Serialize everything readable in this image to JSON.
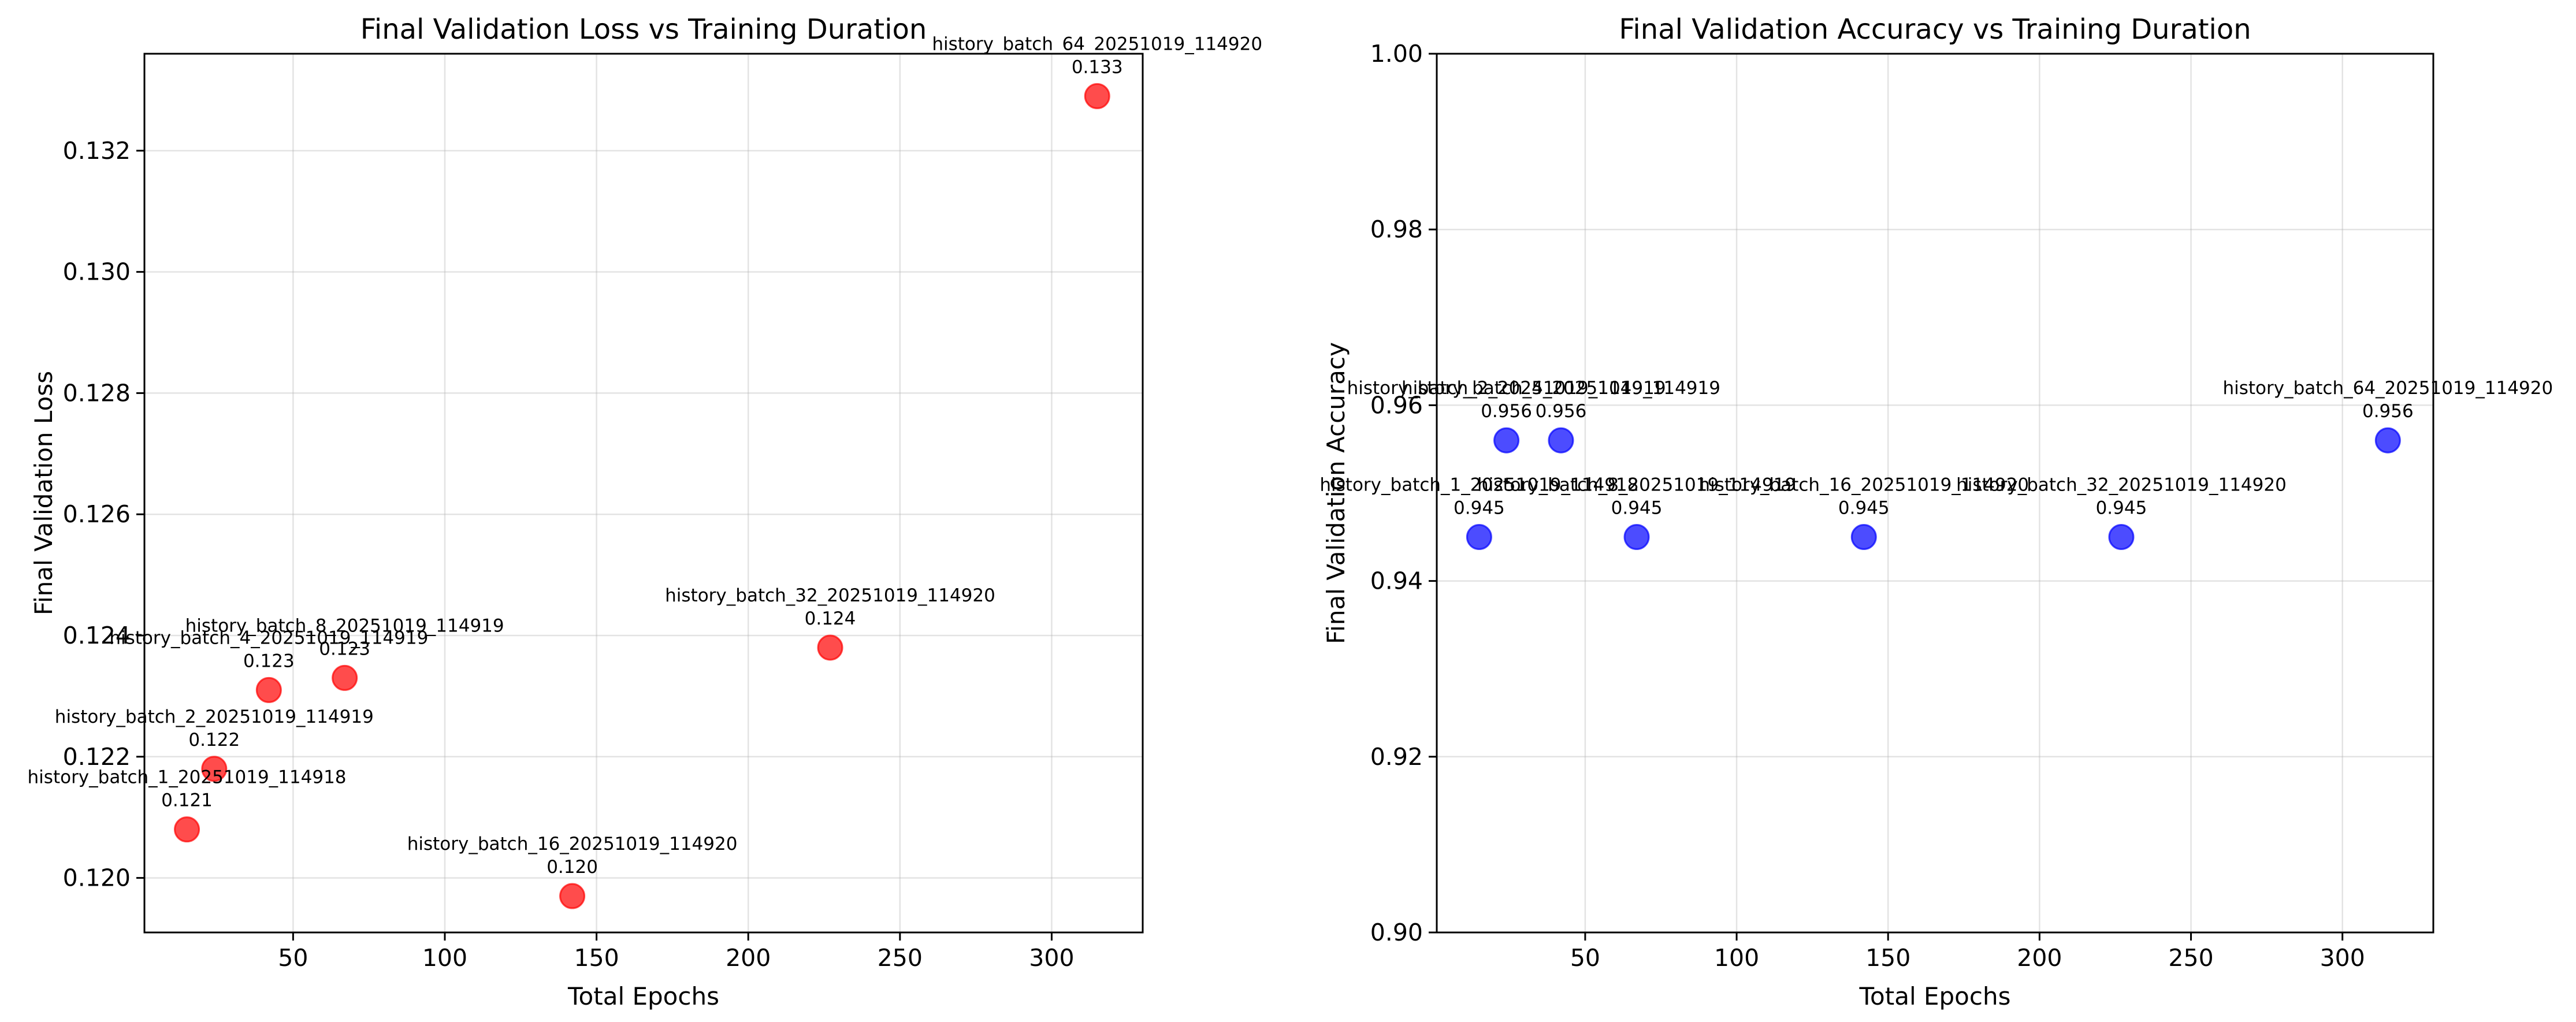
{
  "chart_data": [
    {
      "type": "scatter",
      "title": "Final Validation Loss vs Training Duration",
      "xlabel": "Total Epochs",
      "ylabel": "Final Validation Loss",
      "xlim": [
        1,
        330
      ],
      "ylim": [
        0.1191,
        0.1336
      ],
      "xticks": [
        50,
        100,
        150,
        200,
        250,
        300
      ],
      "yticks": [
        0.12,
        0.122,
        0.124,
        0.126,
        0.128,
        0.13,
        0.132
      ],
      "ytick_decimals": 3,
      "grid": true,
      "color": "#ff0000",
      "points": [
        {
          "name": "history_batch_1_20251019_114918",
          "x": 15,
          "y": 0.1208,
          "label": "0.121"
        },
        {
          "name": "history_batch_2_20251019_114919",
          "x": 24,
          "y": 0.1218,
          "label": "0.122"
        },
        {
          "name": "history_batch_4_20251019_114919",
          "x": 42,
          "y": 0.1231,
          "label": "0.123"
        },
        {
          "name": "history_batch_8_20251019_114919",
          "x": 67,
          "y": 0.1233,
          "label": "0.123"
        },
        {
          "name": "history_batch_16_20251019_114920",
          "x": 142,
          "y": 0.1197,
          "label": "0.120"
        },
        {
          "name": "history_batch_32_20251019_114920",
          "x": 227,
          "y": 0.1238,
          "label": "0.124"
        },
        {
          "name": "history_batch_64_20251019_114920",
          "x": 315,
          "y": 0.1329,
          "label": "0.133"
        }
      ]
    },
    {
      "type": "scatter",
      "title": "Final Validation Accuracy vs Training Duration",
      "xlabel": "Total Epochs",
      "ylabel": "Final Validation Accuracy",
      "xlim": [
        1,
        330
      ],
      "ylim": [
        0.9,
        1.0
      ],
      "xticks": [
        50,
        100,
        150,
        200,
        250,
        300
      ],
      "yticks": [
        0.9,
        0.92,
        0.94,
        0.96,
        0.98,
        1.0
      ],
      "ytick_decimals": 2,
      "grid": true,
      "color": "#0000ff",
      "points": [
        {
          "name": "history_batch_1_20251019_114918",
          "x": 15,
          "y": 0.945,
          "label": "0.945"
        },
        {
          "name": "history_batch_2_20251019_114919",
          "x": 24,
          "y": 0.956,
          "label": "0.956"
        },
        {
          "name": "history_batch_4_20251019_114919",
          "x": 42,
          "y": 0.956,
          "label": "0.956"
        },
        {
          "name": "history_batch_8_20251019_114919",
          "x": 67,
          "y": 0.945,
          "label": "0.945"
        },
        {
          "name": "history_batch_16_20251019_114920",
          "x": 142,
          "y": 0.945,
          "label": "0.945"
        },
        {
          "name": "history_batch_32_20251019_114920",
          "x": 227,
          "y": 0.945,
          "label": "0.945"
        },
        {
          "name": "history_batch_64_20251019_114920",
          "x": 315,
          "y": 0.956,
          "label": "0.956"
        }
      ]
    }
  ]
}
